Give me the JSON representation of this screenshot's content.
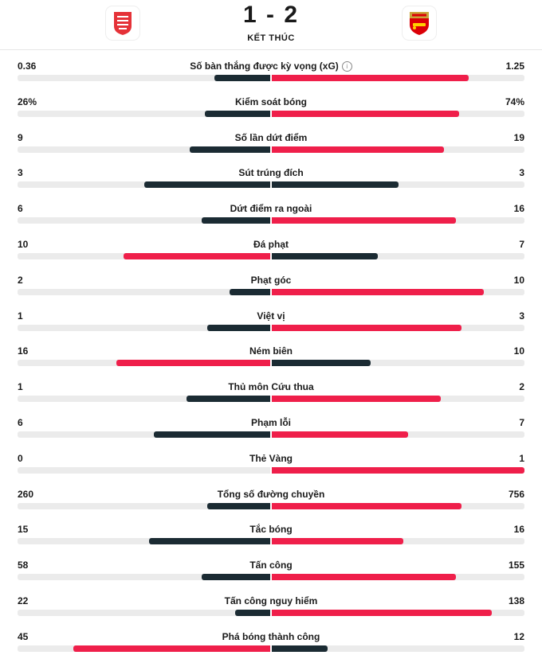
{
  "header": {
    "score": "1 - 2",
    "status": "KẾT THÚC",
    "home_logo_icon": "nottingham-forest-crest",
    "away_logo_icon": "arsenal-crest"
  },
  "colors": {
    "winner": "#ef1f4a",
    "loser": "#1b2b33",
    "track": "#ebebeb"
  },
  "stats": [
    {
      "label": "Số bàn thắng được kỳ vọng (xG)",
      "home": "0.36",
      "away": "1.25",
      "home_fill": 0.22,
      "away_fill": 0.78,
      "home_color": "dark",
      "away_color": "red",
      "info": true
    },
    {
      "label": "Kiểm soát bóng",
      "home": "26%",
      "away": "74%",
      "home_fill": 0.26,
      "away_fill": 0.74,
      "home_color": "dark",
      "away_color": "red"
    },
    {
      "label": "Số lần dứt điểm",
      "home": "9",
      "away": "19",
      "home_fill": 0.32,
      "away_fill": 0.68,
      "home_color": "dark",
      "away_color": "red"
    },
    {
      "label": "Sút trúng đích",
      "home": "3",
      "away": "3",
      "home_fill": 0.5,
      "away_fill": 0.5,
      "home_color": "dark",
      "away_color": "dark"
    },
    {
      "label": "Dứt điểm ra ngoài",
      "home": "6",
      "away": "16",
      "home_fill": 0.27,
      "away_fill": 0.73,
      "home_color": "dark",
      "away_color": "red"
    },
    {
      "label": "Đá phạt",
      "home": "10",
      "away": "7",
      "home_fill": 0.58,
      "away_fill": 0.42,
      "home_color": "red",
      "away_color": "dark"
    },
    {
      "label": "Phạt góc",
      "home": "2",
      "away": "10",
      "home_fill": 0.16,
      "away_fill": 0.84,
      "home_color": "dark",
      "away_color": "red"
    },
    {
      "label": "Việt vị",
      "home": "1",
      "away": "3",
      "home_fill": 0.25,
      "away_fill": 0.75,
      "home_color": "dark",
      "away_color": "red"
    },
    {
      "label": "Ném biên",
      "home": "16",
      "away": "10",
      "home_fill": 0.61,
      "away_fill": 0.39,
      "home_color": "red",
      "away_color": "dark"
    },
    {
      "label": "Thủ môn Cứu thua",
      "home": "1",
      "away": "2",
      "home_fill": 0.33,
      "away_fill": 0.67,
      "home_color": "dark",
      "away_color": "red"
    },
    {
      "label": "Phạm lỗi",
      "home": "6",
      "away": "7",
      "home_fill": 0.46,
      "away_fill": 0.54,
      "home_color": "dark",
      "away_color": "red"
    },
    {
      "label": "Thẻ Vàng",
      "home": "0",
      "away": "1",
      "home_fill": 0,
      "away_fill": 1,
      "home_color": "dark",
      "away_color": "red"
    },
    {
      "label": "Tổng số đường chuyền",
      "home": "260",
      "away": "756",
      "home_fill": 0.25,
      "away_fill": 0.75,
      "home_color": "dark",
      "away_color": "red"
    },
    {
      "label": "Tắc bóng",
      "home": "15",
      "away": "16",
      "home_fill": 0.48,
      "away_fill": 0.52,
      "home_color": "dark",
      "away_color": "red"
    },
    {
      "label": "Tấn công",
      "home": "58",
      "away": "155",
      "home_fill": 0.27,
      "away_fill": 0.73,
      "home_color": "dark",
      "away_color": "red"
    },
    {
      "label": "Tấn công nguy hiểm",
      "home": "22",
      "away": "138",
      "home_fill": 0.14,
      "away_fill": 0.87,
      "home_color": "dark",
      "away_color": "red"
    },
    {
      "label": "Phá bóng thành công",
      "home": "45",
      "away": "12",
      "home_fill": 0.78,
      "away_fill": 0.22,
      "home_color": "red",
      "away_color": "dark"
    }
  ]
}
